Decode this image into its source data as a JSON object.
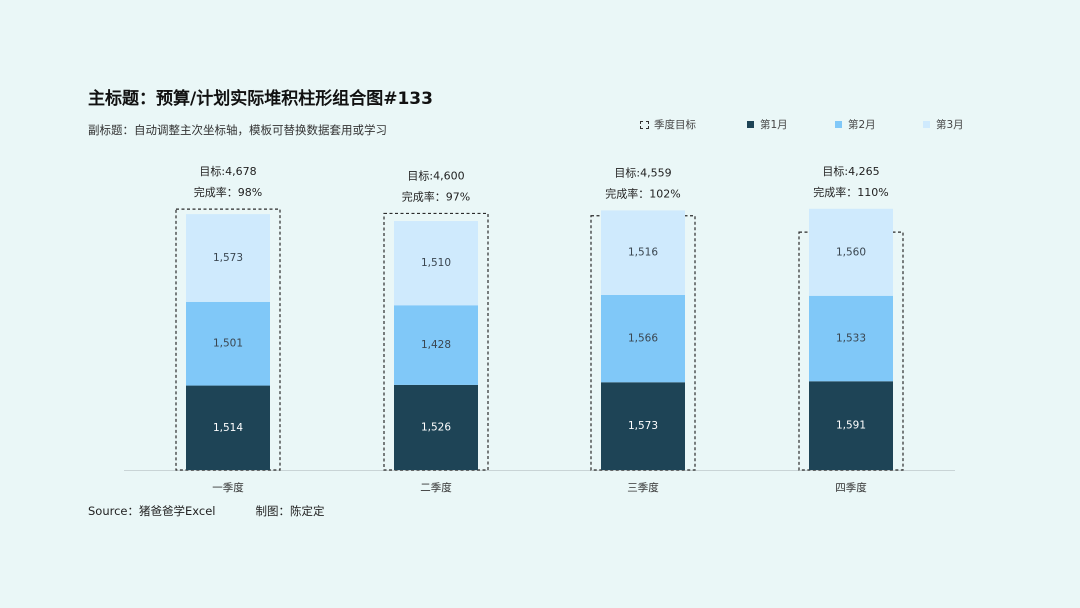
{
  "title": "主标题：预算/计划实际堆积柱形组合图#133",
  "subtitle": "副标题：自动调整主次坐标轴，模板可替换数据套用或学习",
  "footer": {
    "source": "Source：猪爸爸学Excel",
    "author": "制图：陈定定"
  },
  "legend": [
    {
      "label": "季度目标",
      "style": "dashed",
      "color": "#333333"
    },
    {
      "label": "第1月",
      "style": "fill",
      "color": "#1e4456"
    },
    {
      "label": "第2月",
      "style": "fill",
      "color": "#80c8f8"
    },
    {
      "label": "第3月",
      "style": "fill",
      "color": "#cfeafd"
    }
  ],
  "chart_data": {
    "type": "bar",
    "stacked": true,
    "categories": [
      "一季度",
      "二季度",
      "三季度",
      "四季度"
    ],
    "series": [
      {
        "name": "第1月",
        "color": "#1e4456",
        "values": [
          1514,
          1526,
          1573,
          1591
        ]
      },
      {
        "name": "第2月",
        "color": "#80c8f8",
        "values": [
          1501,
          1428,
          1566,
          1533
        ]
      },
      {
        "name": "第3月",
        "color": "#cfeafd",
        "values": [
          1573,
          1510,
          1516,
          1560
        ]
      }
    ],
    "targets": {
      "name": "季度目标",
      "values": [
        4678,
        4600,
        4559,
        4265
      ],
      "value_labels": [
        "目标:4,678",
        "目标:4,600",
        "目标:4,559",
        "目标:4,265"
      ],
      "rate_labels": [
        "完成率：98%",
        "完成率：97%",
        "完成率：102%",
        "完成率：110%"
      ]
    },
    "ylim": [
      0,
      5200
    ],
    "grid": false,
    "legend_position": "top-right"
  }
}
